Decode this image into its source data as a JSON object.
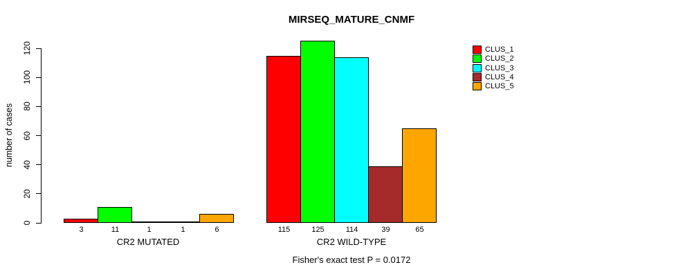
{
  "title": "MIRSEQ_MATURE_CNMF",
  "footer": "Fisher's exact test P = 0.0172",
  "chart_data": {
    "type": "bar",
    "title": "MIRSEQ_MATURE_CNMF",
    "xlabel": "",
    "ylabel": "number of cases",
    "ylim": [
      0,
      120
    ],
    "yticks": [
      0,
      20,
      40,
      60,
      80,
      100,
      120
    ],
    "grid": false,
    "legend_position": "top-right",
    "categories": [
      "CR2 MUTATED",
      "CR2 WILD-TYPE"
    ],
    "series": [
      {
        "name": "CLUS_1",
        "color": "#FF0000",
        "values": [
          3,
          115
        ]
      },
      {
        "name": "CLUS_2",
        "color": "#00FF00",
        "values": [
          11,
          125
        ]
      },
      {
        "name": "CLUS_3",
        "color": "#00FFFF",
        "values": [
          1,
          114
        ]
      },
      {
        "name": "CLUS_4",
        "color": "#A52A2A",
        "values": [
          1,
          39
        ]
      },
      {
        "name": "CLUS_5",
        "color": "#FFA500",
        "values": [
          6,
          65
        ]
      }
    ],
    "bar_value_labels_shown": true,
    "annotation": "Fisher's exact test P = 0.0172"
  }
}
